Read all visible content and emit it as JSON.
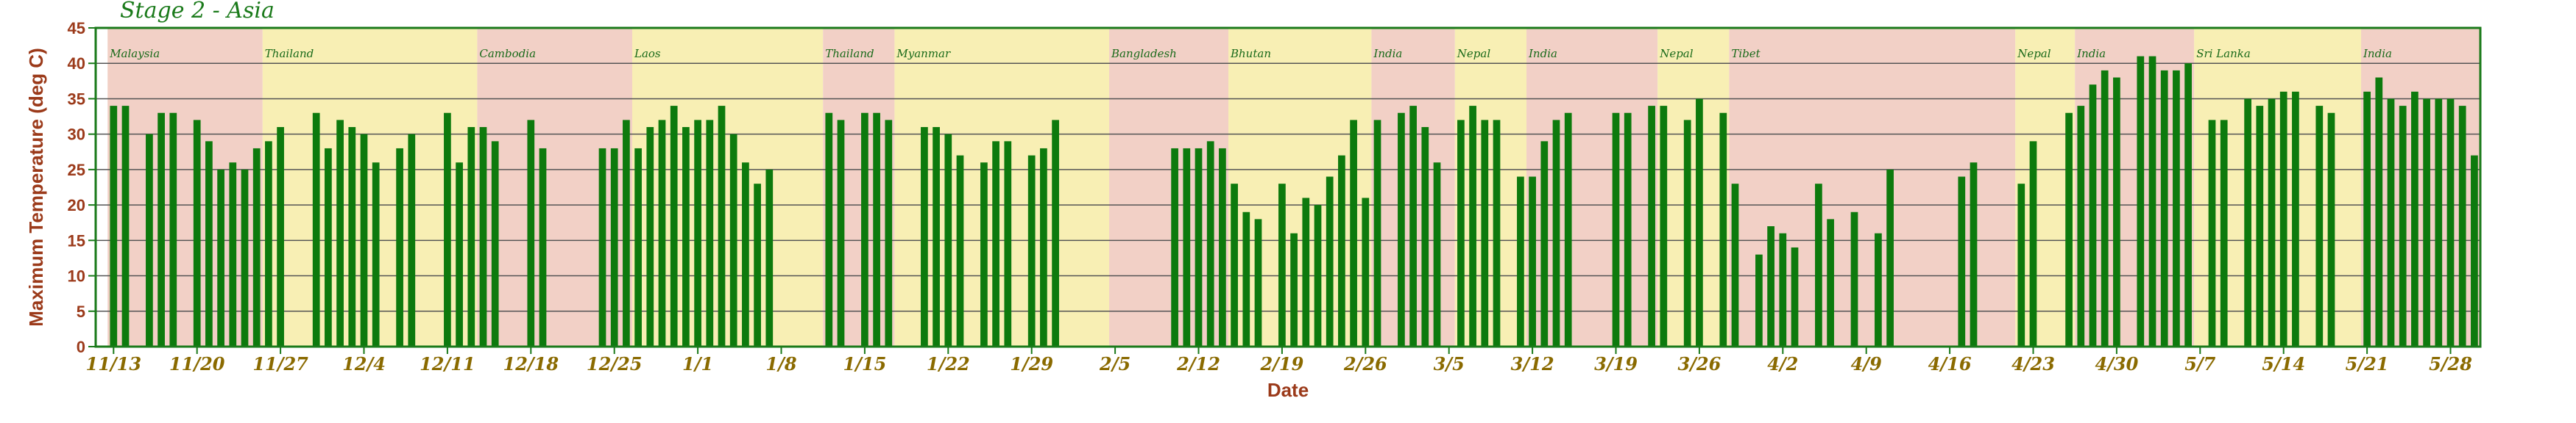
{
  "chart_data": {
    "type": "bar",
    "title": "Stage 2 - Asia",
    "xlabel": "Date",
    "ylabel": "Maximum Temperature (deg C)",
    "ylim": [
      0,
      45
    ],
    "yticks": [
      0,
      5,
      10,
      15,
      20,
      25,
      30,
      35,
      40,
      45
    ],
    "grid": true,
    "legend": "none",
    "x_start_date": "2013-11-12",
    "x_end_date": "2014-05-31",
    "xticks": [
      "11/13",
      "11/20",
      "11/27",
      "12/4",
      "12/11",
      "12/18",
      "12/25",
      "1/1",
      "1/8",
      "1/15",
      "1/22",
      "1/29",
      "2/5",
      "2/12",
      "2/19",
      "2/26",
      "3/5",
      "3/12",
      "3/19",
      "3/26",
      "4/2",
      "4/9",
      "4/16",
      "4/23",
      "4/30",
      "5/7",
      "5/14",
      "5/21",
      "5/28"
    ],
    "xtick_dates": [
      "2013-11-13",
      "2013-11-20",
      "2013-11-27",
      "2013-12-04",
      "2013-12-11",
      "2013-12-18",
      "2013-12-25",
      "2014-01-01",
      "2014-01-08",
      "2014-01-15",
      "2014-01-22",
      "2014-01-29",
      "2014-02-05",
      "2014-02-12",
      "2014-02-19",
      "2014-02-26",
      "2014-03-05",
      "2014-03-12",
      "2014-03-19",
      "2014-03-26",
      "2014-04-02",
      "2014-04-09",
      "2014-04-16",
      "2014-04-23",
      "2014-04-30",
      "2014-05-07",
      "2014-05-14",
      "2014-05-21",
      "2014-05-28"
    ],
    "regions": [
      {
        "name": "Malaysia",
        "start": "2013-11-13",
        "end": "2013-11-26",
        "color": "#f2d0c6"
      },
      {
        "name": "Thailand",
        "start": "2013-11-26",
        "end": "2013-12-14",
        "color": "#f8efb4"
      },
      {
        "name": "Cambodia",
        "start": "2013-12-14",
        "end": "2013-12-27",
        "color": "#f2d0c6"
      },
      {
        "name": "Laos",
        "start": "2013-12-27",
        "end": "2014-01-12",
        "color": "#f8efb4"
      },
      {
        "name": "Thailand",
        "start": "2014-01-12",
        "end": "2014-01-18",
        "color": "#f2d0c6"
      },
      {
        "name": "Myanmar",
        "start": "2014-01-18",
        "end": "2014-02-05",
        "color": "#f8efb4"
      },
      {
        "name": "Bangladesh",
        "start": "2014-02-05",
        "end": "2014-02-15",
        "color": "#f2d0c6"
      },
      {
        "name": "Bhutan",
        "start": "2014-02-15",
        "end": "2014-02-27",
        "color": "#f8efb4"
      },
      {
        "name": "India",
        "start": "2014-02-27",
        "end": "2014-03-06",
        "color": "#f2d0c6"
      },
      {
        "name": "Nepal",
        "start": "2014-03-06",
        "end": "2014-03-12",
        "color": "#f8efb4"
      },
      {
        "name": "India",
        "start": "2014-03-12",
        "end": "2014-03-23",
        "color": "#f2d0c6"
      },
      {
        "name": "Nepal",
        "start": "2014-03-23",
        "end": "2014-03-29",
        "color": "#f8efb4"
      },
      {
        "name": "Tibet",
        "start": "2014-03-29",
        "end": "2014-04-22",
        "color": "#f2d0c6"
      },
      {
        "name": "Nepal",
        "start": "2014-04-22",
        "end": "2014-04-27",
        "color": "#f8efb4"
      },
      {
        "name": "India",
        "start": "2014-04-27",
        "end": "2014-05-07",
        "color": "#f2d0c6"
      },
      {
        "name": "Sri Lanka",
        "start": "2014-05-07",
        "end": "2014-05-21",
        "color": "#f8efb4"
      },
      {
        "name": "India",
        "start": "2014-05-21",
        "end": "2014-05-31",
        "color": "#f2d0c6"
      }
    ],
    "series": [
      {
        "values": [
          [
            "2013-11-13",
            34
          ],
          [
            "2013-11-14",
            34
          ],
          [
            "2013-11-16",
            30
          ],
          [
            "2013-11-17",
            33
          ],
          [
            "2013-11-18",
            33
          ],
          [
            "2013-11-20",
            32
          ],
          [
            "2013-11-21",
            29
          ],
          [
            "2013-11-22",
            25
          ],
          [
            "2013-11-23",
            26
          ],
          [
            "2013-11-24",
            25
          ],
          [
            "2013-11-25",
            28
          ],
          [
            "2013-11-26",
            29
          ],
          [
            "2013-11-27",
            31
          ],
          [
            "2013-11-30",
            33
          ],
          [
            "2013-12-01",
            28
          ],
          [
            "2013-12-02",
            32
          ],
          [
            "2013-12-03",
            31
          ],
          [
            "2013-12-04",
            30
          ],
          [
            "2013-12-05",
            26
          ],
          [
            "2013-12-07",
            28
          ],
          [
            "2013-12-08",
            30
          ],
          [
            "2013-12-11",
            33
          ],
          [
            "2013-12-12",
            26
          ],
          [
            "2013-12-13",
            31
          ],
          [
            "2013-12-14",
            31
          ],
          [
            "2013-12-15",
            29
          ],
          [
            "2013-12-18",
            32
          ],
          [
            "2013-12-19",
            28
          ],
          [
            "2013-12-24",
            28
          ],
          [
            "2013-12-25",
            28
          ],
          [
            "2013-12-26",
            32
          ],
          [
            "2013-12-27",
            28
          ],
          [
            "2013-12-28",
            31
          ],
          [
            "2013-12-29",
            32
          ],
          [
            "2013-12-30",
            34
          ],
          [
            "2013-12-31",
            31
          ],
          [
            "2014-01-01",
            32
          ],
          [
            "2014-01-02",
            32
          ],
          [
            "2014-01-03",
            34
          ],
          [
            "2014-01-04",
            30
          ],
          [
            "2014-01-05",
            26
          ],
          [
            "2014-01-06",
            23
          ],
          [
            "2014-01-07",
            25
          ],
          [
            "2014-01-12",
            33
          ],
          [
            "2014-01-13",
            32
          ],
          [
            "2014-01-15",
            33
          ],
          [
            "2014-01-16",
            33
          ],
          [
            "2014-01-17",
            32
          ],
          [
            "2014-01-20",
            31
          ],
          [
            "2014-01-21",
            31
          ],
          [
            "2014-01-22",
            30
          ],
          [
            "2014-01-23",
            27
          ],
          [
            "2014-01-25",
            26
          ],
          [
            "2014-01-26",
            29
          ],
          [
            "2014-01-27",
            29
          ],
          [
            "2014-01-29",
            27
          ],
          [
            "2014-01-30",
            28
          ],
          [
            "2014-01-31",
            32
          ],
          [
            "2014-02-10",
            28
          ],
          [
            "2014-02-11",
            28
          ],
          [
            "2014-02-12",
            28
          ],
          [
            "2014-02-13",
            29
          ],
          [
            "2014-02-14",
            28
          ],
          [
            "2014-02-15",
            23
          ],
          [
            "2014-02-16",
            19
          ],
          [
            "2014-02-17",
            18
          ],
          [
            "2014-02-19",
            23
          ],
          [
            "2014-02-20",
            16
          ],
          [
            "2014-02-21",
            21
          ],
          [
            "2014-02-22",
            20
          ],
          [
            "2014-02-23",
            24
          ],
          [
            "2014-02-24",
            27
          ],
          [
            "2014-02-25",
            32
          ],
          [
            "2014-02-26",
            21
          ],
          [
            "2014-02-27",
            32
          ],
          [
            "2014-03-01",
            33
          ],
          [
            "2014-03-02",
            34
          ],
          [
            "2014-03-03",
            31
          ],
          [
            "2014-03-04",
            26
          ],
          [
            "2014-03-06",
            32
          ],
          [
            "2014-03-07",
            34
          ],
          [
            "2014-03-08",
            32
          ],
          [
            "2014-03-09",
            32
          ],
          [
            "2014-03-11",
            24
          ],
          [
            "2014-03-12",
            24
          ],
          [
            "2014-03-13",
            29
          ],
          [
            "2014-03-14",
            32
          ],
          [
            "2014-03-15",
            33
          ],
          [
            "2014-03-19",
            33
          ],
          [
            "2014-03-20",
            33
          ],
          [
            "2014-03-22",
            34
          ],
          [
            "2014-03-23",
            34
          ],
          [
            "2014-03-25",
            32
          ],
          [
            "2014-03-26",
            35
          ],
          [
            "2014-03-28",
            33
          ],
          [
            "2014-03-29",
            23
          ],
          [
            "2014-03-31",
            13
          ],
          [
            "2014-04-01",
            17
          ],
          [
            "2014-04-02",
            16
          ],
          [
            "2014-04-03",
            14
          ],
          [
            "2014-04-05",
            23
          ],
          [
            "2014-04-06",
            18
          ],
          [
            "2014-04-08",
            19
          ],
          [
            "2014-04-10",
            16
          ],
          [
            "2014-04-11",
            25
          ],
          [
            "2014-04-17",
            24
          ],
          [
            "2014-04-18",
            26
          ],
          [
            "2014-04-22",
            23
          ],
          [
            "2014-04-23",
            29
          ],
          [
            "2014-04-26",
            33
          ],
          [
            "2014-04-27",
            34
          ],
          [
            "2014-04-28",
            37
          ],
          [
            "2014-04-29",
            39
          ],
          [
            "2014-04-30",
            38
          ],
          [
            "2014-05-02",
            41
          ],
          [
            "2014-05-03",
            41
          ],
          [
            "2014-05-04",
            39
          ],
          [
            "2014-05-05",
            39
          ],
          [
            "2014-05-06",
            40
          ],
          [
            "2014-05-08",
            32
          ],
          [
            "2014-05-09",
            32
          ],
          [
            "2014-05-11",
            35
          ],
          [
            "2014-05-12",
            34
          ],
          [
            "2014-05-13",
            35
          ],
          [
            "2014-05-14",
            36
          ],
          [
            "2014-05-15",
            36
          ],
          [
            "2014-05-17",
            34
          ],
          [
            "2014-05-18",
            33
          ],
          [
            "2014-05-21",
            36
          ],
          [
            "2014-05-22",
            38
          ],
          [
            "2014-05-23",
            35
          ],
          [
            "2014-05-24",
            34
          ],
          [
            "2014-05-25",
            36
          ],
          [
            "2014-05-26",
            35
          ],
          [
            "2014-05-27",
            35
          ],
          [
            "2014-05-28",
            35
          ],
          [
            "2014-05-29",
            34
          ],
          [
            "2014-05-30",
            27
          ]
        ],
        "color": "#0d7a0d"
      }
    ]
  }
}
